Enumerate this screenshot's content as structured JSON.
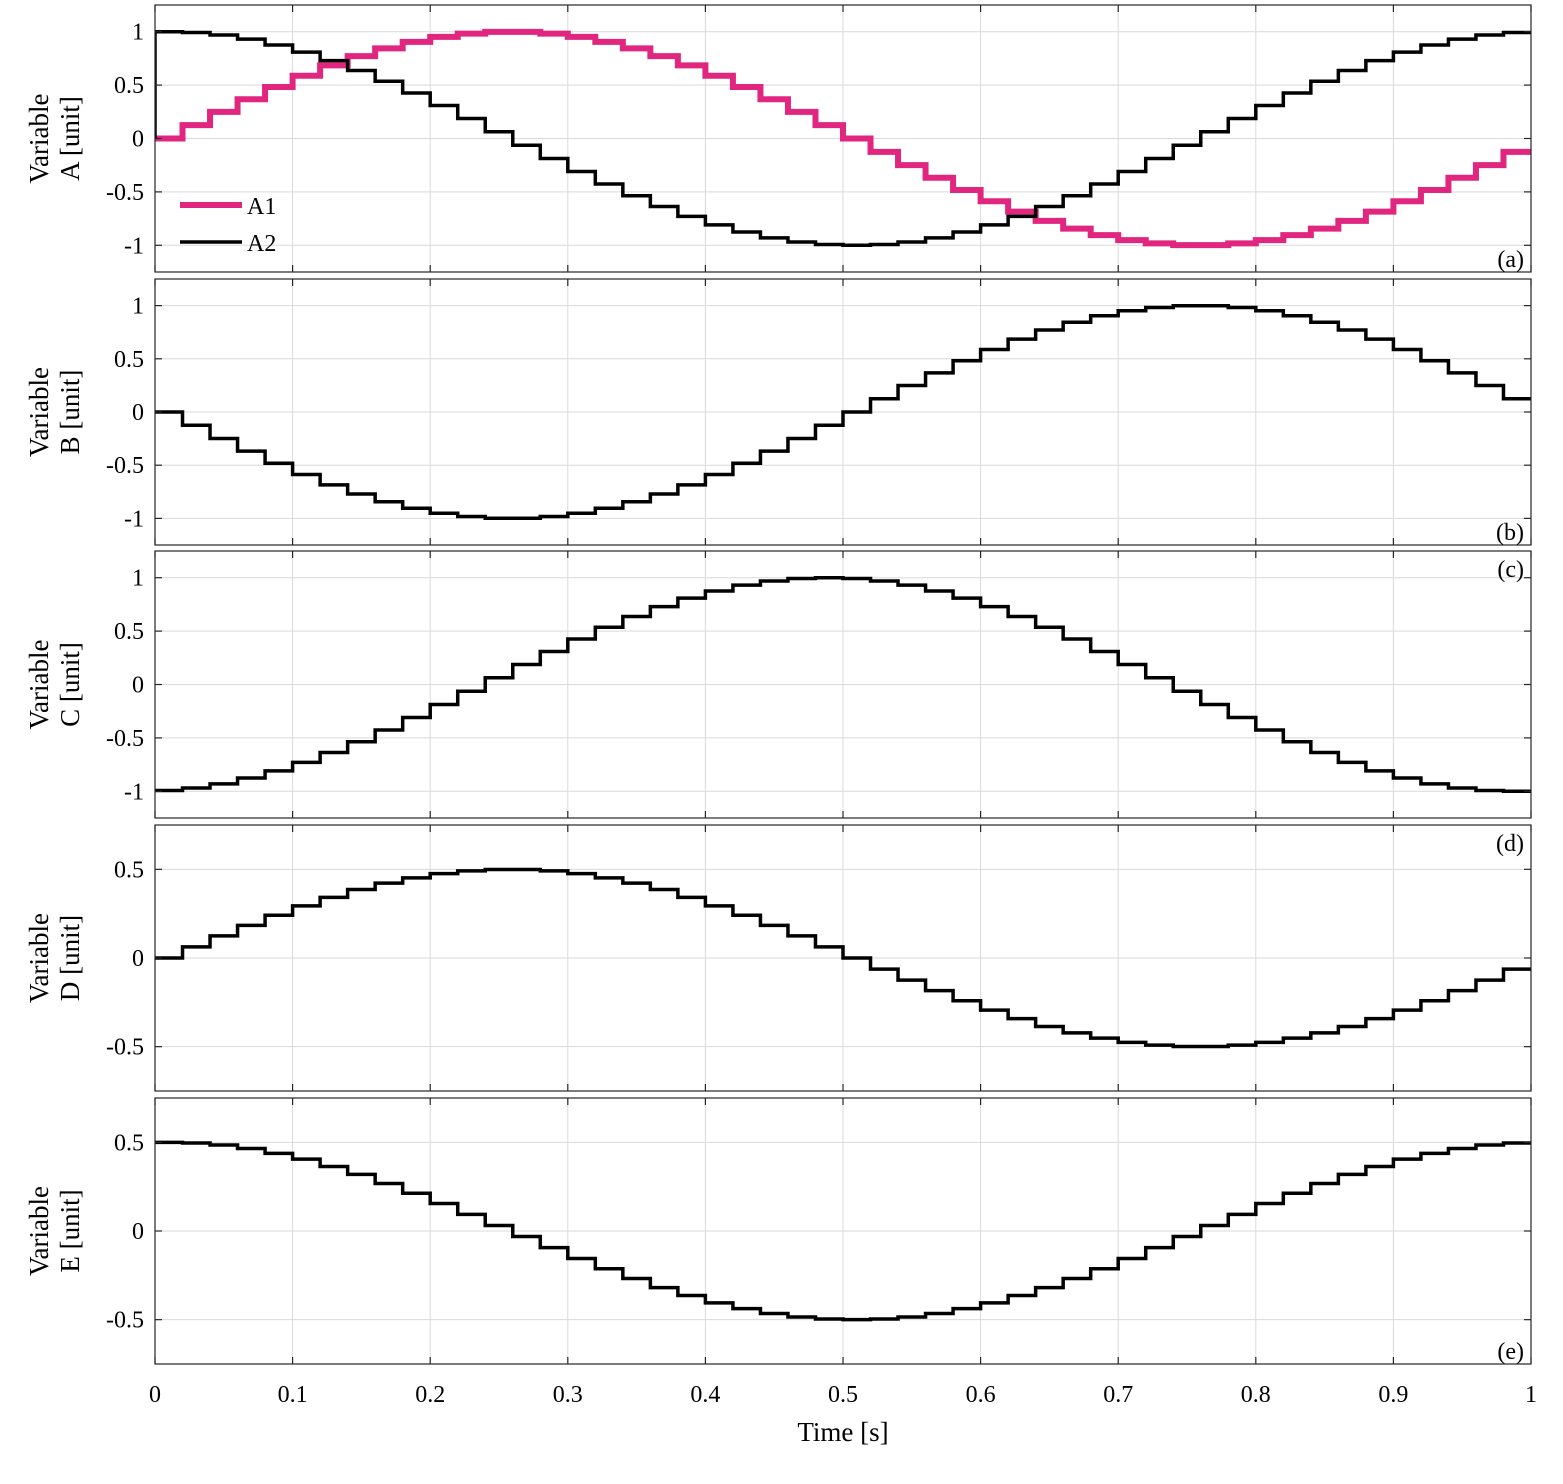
{
  "chart_data": {
    "type": "line",
    "style": "step",
    "xlabel": "Time [s]",
    "xlim": [
      0,
      1
    ],
    "xticks": [
      0,
      0.1,
      0.2,
      0.3,
      0.4,
      0.5,
      0.6,
      0.7,
      0.8,
      0.9,
      1
    ],
    "xtick_labels": [
      "0",
      "0.1",
      "0.2",
      "0.3",
      "0.4",
      "0.5",
      "0.6",
      "0.7",
      "0.8",
      "0.9",
      "1"
    ],
    "grid": true,
    "colors": {
      "magenta": "#e0267f",
      "black": "#000000"
    },
    "panels": [
      {
        "tag": "(a)",
        "ylabel": [
          "Variable",
          "A [unit]"
        ],
        "ylim": [
          -1.25,
          1.25
        ],
        "yticks": [
          -1,
          -0.5,
          0,
          0.5,
          1
        ],
        "ytick_labels": [
          "-1",
          "-0.5",
          "0",
          "0.5",
          "1"
        ],
        "legend": "lower-left",
        "series": [
          {
            "name": "A1",
            "color": "#e0267f",
            "width": 6,
            "start": 0,
            "values": [
              0,
              0.125,
              0.249,
              0.368,
              0.482,
              0.588,
              0.685,
              0.771,
              0.844,
              0.905,
              0.951,
              0.982,
              0.998,
              0.998,
              0.982,
              0.951,
              0.905,
              0.844,
              0.771,
              0.685,
              0.588,
              0.482,
              0.368,
              0.249,
              0.125,
              0,
              -0.125,
              -0.249,
              -0.368,
              -0.482,
              -0.588,
              -0.685,
              -0.771,
              -0.844,
              -0.905,
              -0.951,
              -0.982,
              -0.998,
              -0.998,
              -0.982,
              -0.951,
              -0.905,
              -0.844,
              -0.771,
              -0.685,
              -0.588,
              -0.482,
              -0.368,
              -0.249,
              -0.125
            ]
          },
          {
            "name": "A2",
            "color": "#000000",
            "width": 3.5,
            "start": 0,
            "values": [
              1,
              0.992,
              0.969,
              0.93,
              0.876,
              0.809,
              0.729,
              0.637,
              0.536,
              0.426,
              0.309,
              0.187,
              0.063,
              -0.063,
              -0.187,
              -0.309,
              -0.426,
              -0.536,
              -0.637,
              -0.729,
              -0.809,
              -0.876,
              -0.93,
              -0.969,
              -0.992,
              -1,
              -0.992,
              -0.969,
              -0.93,
              -0.876,
              -0.809,
              -0.729,
              -0.637,
              -0.536,
              -0.426,
              -0.309,
              -0.187,
              -0.063,
              0.063,
              0.187,
              0.309,
              0.426,
              0.536,
              0.637,
              0.729,
              0.809,
              0.876,
              0.93,
              0.969,
              0.992
            ]
          }
        ]
      },
      {
        "tag": "(b)",
        "ylabel": [
          "Variable",
          "B [unit]"
        ],
        "ylim": [
          -1.25,
          1.25
        ],
        "yticks": [
          -1,
          -0.5,
          0,
          0.5,
          1
        ],
        "ytick_labels": [
          "-1",
          "-0.5",
          "0",
          "0.5",
          "1"
        ],
        "series": [
          {
            "color": "#000000",
            "width": 3.5,
            "start": 0,
            "values": [
              0,
              -0.125,
              -0.249,
              -0.368,
              -0.482,
              -0.588,
              -0.685,
              -0.771,
              -0.844,
              -0.905,
              -0.951,
              -0.982,
              -0.998,
              -0.998,
              -0.982,
              -0.951,
              -0.905,
              -0.844,
              -0.771,
              -0.685,
              -0.588,
              -0.482,
              -0.368,
              -0.249,
              -0.125,
              0,
              0.125,
              0.249,
              0.368,
              0.482,
              0.588,
              0.685,
              0.771,
              0.844,
              0.905,
              0.951,
              0.982,
              0.998,
              0.998,
              0.982,
              0.951,
              0.905,
              0.844,
              0.771,
              0.685,
              0.588,
              0.482,
              0.368,
              0.249,
              0.125
            ]
          }
        ]
      },
      {
        "tag": "(c)",
        "ylabel": [
          "Variable",
          "C [unit]"
        ],
        "ylim": [
          -1.25,
          1.25
        ],
        "yticks": [
          -1,
          -0.5,
          0,
          0.5,
          1
        ],
        "ytick_labels": [
          "-1",
          "-0.5",
          "0",
          "0.5",
          "1"
        ],
        "series": [
          {
            "color": "#000000",
            "width": 3.5,
            "start": -1,
            "values": [
              -0.992,
              -0.969,
              -0.93,
              -0.876,
              -0.809,
              -0.729,
              -0.637,
              -0.536,
              -0.426,
              -0.309,
              -0.187,
              -0.063,
              0.063,
              0.187,
              0.309,
              0.426,
              0.536,
              0.637,
              0.729,
              0.809,
              0.876,
              0.93,
              0.969,
              0.992,
              1,
              0.992,
              0.969,
              0.93,
              0.876,
              0.809,
              0.729,
              0.637,
              0.536,
              0.426,
              0.309,
              0.187,
              0.063,
              -0.063,
              -0.187,
              -0.309,
              -0.426,
              -0.536,
              -0.637,
              -0.729,
              -0.809,
              -0.876,
              -0.93,
              -0.969,
              -0.992,
              -1
            ]
          }
        ]
      },
      {
        "tag": "(d)",
        "ylabel": [
          "Variable",
          "D [unit]"
        ],
        "ylim": [
          -0.75,
          0.75
        ],
        "yticks": [
          -0.5,
          0,
          0.5
        ],
        "ytick_labels": [
          "-0.5",
          "0",
          "0.5"
        ],
        "series": [
          {
            "color": "#000000",
            "width": 3.5,
            "start": 0,
            "values": [
              0,
              0.063,
              0.125,
              0.184,
              0.241,
              0.294,
              0.342,
              0.386,
              0.422,
              0.452,
              0.476,
              0.491,
              0.499,
              0.499,
              0.491,
              0.476,
              0.452,
              0.422,
              0.386,
              0.342,
              0.294,
              0.241,
              0.184,
              0.125,
              0.063,
              0,
              -0.063,
              -0.125,
              -0.184,
              -0.241,
              -0.294,
              -0.342,
              -0.386,
              -0.422,
              -0.452,
              -0.476,
              -0.491,
              -0.499,
              -0.499,
              -0.491,
              -0.476,
              -0.452,
              -0.422,
              -0.386,
              -0.342,
              -0.294,
              -0.241,
              -0.184,
              -0.125,
              -0.063
            ]
          }
        ]
      },
      {
        "tag": "(e)",
        "ylabel": [
          "Variable",
          "E [unit]"
        ],
        "ylim": [
          -0.75,
          0.75
        ],
        "yticks": [
          -0.5,
          0,
          0.5
        ],
        "ytick_labels": [
          "-0.5",
          "0",
          "0.5"
        ],
        "series": [
          {
            "color": "#000000",
            "width": 3.5,
            "start": 0.5,
            "values": [
              0.5,
              0.496,
              0.485,
              0.465,
              0.438,
              0.405,
              0.364,
              0.319,
              0.268,
              0.213,
              0.155,
              0.094,
              0.031,
              -0.031,
              -0.094,
              -0.155,
              -0.213,
              -0.268,
              -0.319,
              -0.364,
              -0.405,
              -0.438,
              -0.465,
              -0.485,
              -0.496,
              -0.5,
              -0.496,
              -0.485,
              -0.465,
              -0.438,
              -0.405,
              -0.364,
              -0.319,
              -0.268,
              -0.213,
              -0.155,
              -0.094,
              -0.031,
              0.031,
              0.094,
              0.155,
              0.213,
              0.268,
              0.319,
              0.364,
              0.405,
              0.438,
              0.465,
              0.485,
              0.496
            ]
          }
        ]
      }
    ]
  }
}
